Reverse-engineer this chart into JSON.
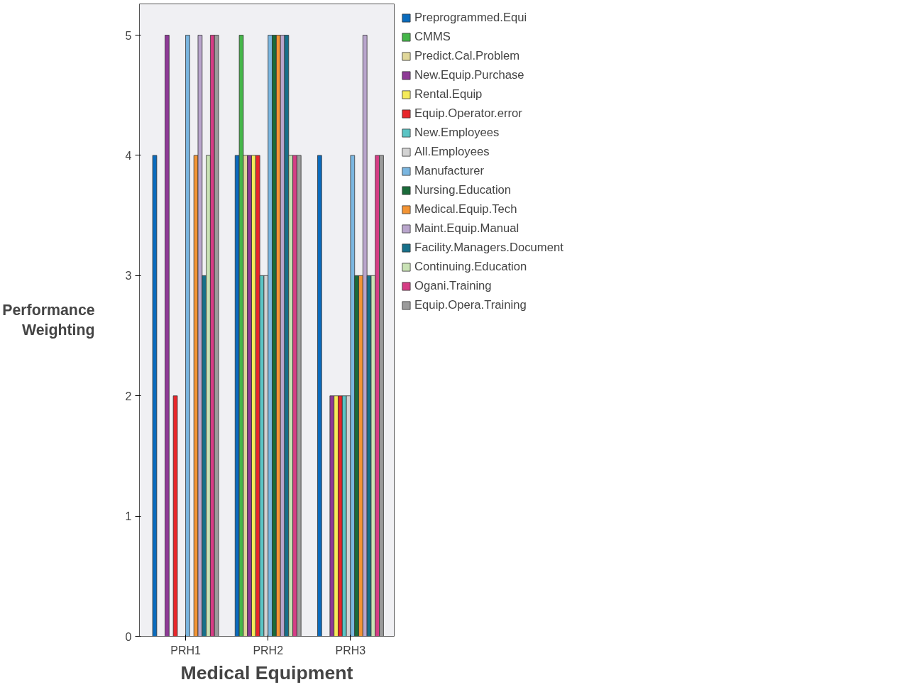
{
  "chart_data": {
    "type": "bar",
    "xlabel": "Medical Equipment",
    "ylabel": "Performance Weighting",
    "categories": [
      "PRH1",
      "PRH2",
      "PRH3"
    ],
    "ylim": [
      0,
      5.26
    ],
    "yticks": [
      0,
      1,
      2,
      3,
      4,
      5
    ],
    "grid": false,
    "legend": "right",
    "series": [
      {
        "name": "Preprogrammed.Equi",
        "color": "#0a6bbd",
        "values": [
          4,
          4,
          4
        ]
      },
      {
        "name": "CMMS",
        "color": "#45b649",
        "values": [
          null,
          5,
          null
        ]
      },
      {
        "name": "Predict.Cal.Problem",
        "color": "#e0d79a",
        "values": [
          null,
          4,
          null
        ]
      },
      {
        "name": "New.Equip.Purchase",
        "color": "#8e3a96",
        "values": [
          5,
          4,
          2
        ]
      },
      {
        "name": "Rental.Equip",
        "color": "#f5eb5a",
        "values": [
          null,
          4,
          2
        ]
      },
      {
        "name": "Equip.Operator.error",
        "color": "#e8262b",
        "values": [
          2,
          4,
          2
        ]
      },
      {
        "name": "New.Employees",
        "color": "#5bc4c4",
        "values": [
          null,
          3,
          2
        ]
      },
      {
        "name": "All.Employees",
        "color": "#d3d3d3",
        "values": [
          null,
          3,
          2
        ]
      },
      {
        "name": "Manufacturer",
        "color": "#7ab6e0",
        "values": [
          5,
          5,
          4
        ]
      },
      {
        "name": "Nursing.Education",
        "color": "#1a6b3a",
        "values": [
          null,
          5,
          3
        ]
      },
      {
        "name": "Medical.Equip.Tech",
        "color": "#f39434",
        "values": [
          4,
          5,
          3
        ]
      },
      {
        "name": "Maint.Equip.Manual",
        "color": "#b9a5cc",
        "values": [
          5,
          5,
          5
        ]
      },
      {
        "name": "Facility.Managers.Document",
        "color": "#17708a",
        "values": [
          3,
          5,
          3
        ]
      },
      {
        "name": "Continuing.Education",
        "color": "#c9e2b5",
        "values": [
          4,
          4,
          3
        ]
      },
      {
        "name": "Ogani.Training",
        "color": "#d63d85",
        "values": [
          5,
          4,
          4
        ]
      },
      {
        "name": "Equip.Opera.Training",
        "color": "#9b9b9b",
        "values": [
          5,
          4,
          4
        ]
      }
    ]
  }
}
